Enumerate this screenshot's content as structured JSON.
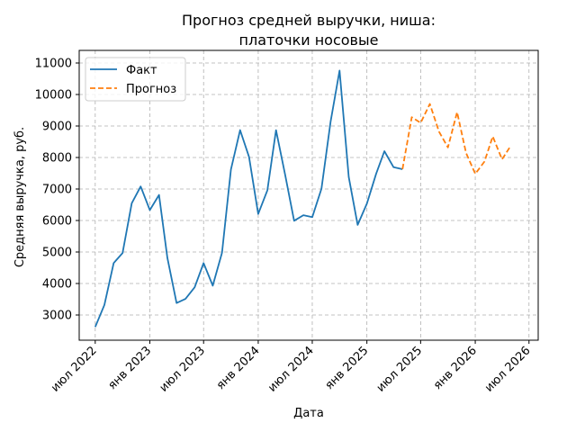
{
  "chart_data": {
    "type": "line",
    "title_line1": "Прогноз средней выручки, ниша:",
    "title_line2": "платочки носовые",
    "xlabel": "Дата",
    "ylabel": "Средняя выручка, руб.",
    "grid": true,
    "legend_position": "top-left",
    "xlim": [
      "2022-05-08",
      "2026-08-01"
    ],
    "ylim": [
      2200,
      11400
    ],
    "y_ticks": [
      3000,
      4000,
      5000,
      6000,
      7000,
      8000,
      9000,
      10000,
      11000
    ],
    "x_ticks": [
      {
        "date": "2022-07-01",
        "label": "июл 2022"
      },
      {
        "date": "2023-01-01",
        "label": "янв 2023"
      },
      {
        "date": "2023-07-01",
        "label": "июл 2023"
      },
      {
        "date": "2024-01-01",
        "label": "янв 2024"
      },
      {
        "date": "2024-07-01",
        "label": "июл 2024"
      },
      {
        "date": "2025-01-01",
        "label": "янв 2025"
      },
      {
        "date": "2025-07-01",
        "label": "июл 2025"
      },
      {
        "date": "2026-01-01",
        "label": "янв 2026"
      },
      {
        "date": "2026-07-01",
        "label": "июл 2026"
      }
    ],
    "series": [
      {
        "name": "Факт",
        "color": "#1f77b4",
        "style": "solid",
        "x": [
          "2022-07-01",
          "2022-08-01",
          "2022-09-01",
          "2022-10-01",
          "2022-11-01",
          "2022-12-01",
          "2023-01-01",
          "2023-02-01",
          "2023-03-01",
          "2023-04-01",
          "2023-05-01",
          "2023-06-01",
          "2023-07-01",
          "2023-08-01",
          "2023-09-01",
          "2023-10-01",
          "2023-11-01",
          "2023-12-01",
          "2024-01-01",
          "2024-02-01",
          "2024-03-01",
          "2024-04-01",
          "2024-05-01",
          "2024-06-01",
          "2024-07-01",
          "2024-08-01",
          "2024-09-01",
          "2024-10-01",
          "2024-11-01",
          "2024-12-01",
          "2025-01-01",
          "2025-02-01",
          "2025-03-01",
          "2025-04-01",
          "2025-05-01"
        ],
        "values": [
          2620,
          3320,
          4650,
          4970,
          6550,
          7080,
          6330,
          6810,
          4810,
          3380,
          3510,
          3880,
          4650,
          3930,
          4980,
          7620,
          8870,
          8020,
          6210,
          6960,
          8870,
          7440,
          5990,
          6170,
          6110,
          7010,
          9150,
          10760,
          7380,
          5860,
          6540,
          7480,
          8200,
          7690,
          7630
        ]
      },
      {
        "name": "Прогноз",
        "color": "#ff7f0e",
        "style": "dashed",
        "x": [
          "2025-05-01",
          "2025-06-01",
          "2025-07-01",
          "2025-08-01",
          "2025-09-01",
          "2025-10-01",
          "2025-11-01",
          "2025-12-01",
          "2026-01-01",
          "2026-02-01",
          "2026-03-01",
          "2026-04-01",
          "2026-05-01"
        ],
        "values": [
          7630,
          9280,
          9100,
          9700,
          8820,
          8320,
          9440,
          8150,
          7480,
          7870,
          8670,
          7940,
          8380
        ]
      }
    ]
  }
}
